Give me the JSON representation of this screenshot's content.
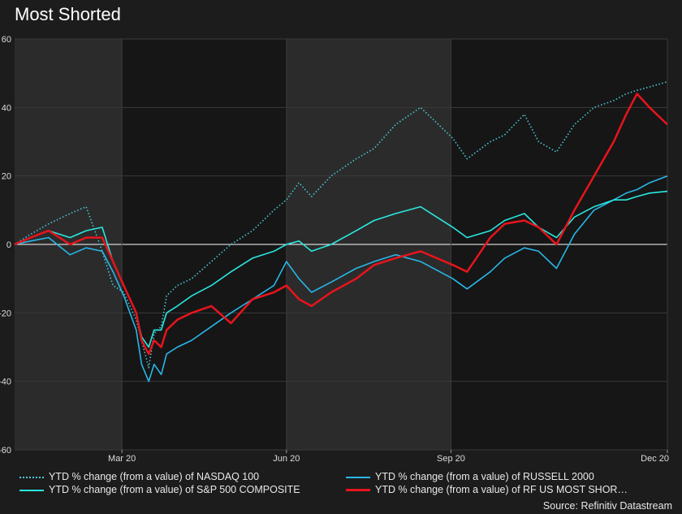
{
  "title": "Most Shorted",
  "source": "Source: Refinitiv Datastream",
  "colors": {
    "background": "#1c1c1c",
    "band": "#2b2b2b",
    "zero_line": "#ffffff"
  },
  "chart_data": {
    "type": "line",
    "title": "Most Shorted",
    "xlabel": "",
    "ylabel": "",
    "ylim": [
      -60,
      60
    ],
    "yticks": [
      -60,
      -40,
      -20,
      0,
      20,
      40,
      60
    ],
    "ytick_labels": [
      "-60",
      "-40",
      "-20",
      "0",
      "20",
      "40",
      "60"
    ],
    "xticks": [
      "Mar 20",
      "Jun 20",
      "Sep 20",
      "Dec 20"
    ],
    "grid": true,
    "legend_position": "bottom",
    "x": [
      "2020-01-01",
      "2020-01-10",
      "2020-01-20",
      "2020-02-01",
      "2020-02-10",
      "2020-02-19",
      "2020-02-25",
      "2020-03-02",
      "2020-03-09",
      "2020-03-12",
      "2020-03-16",
      "2020-03-19",
      "2020-03-23",
      "2020-03-26",
      "2020-04-01",
      "2020-04-09",
      "2020-04-20",
      "2020-05-01",
      "2020-05-13",
      "2020-05-25",
      "2020-06-01",
      "2020-06-08",
      "2020-06-15",
      "2020-06-26",
      "2020-07-10",
      "2020-07-20",
      "2020-08-01",
      "2020-08-15",
      "2020-09-02",
      "2020-09-10",
      "2020-09-23",
      "2020-10-01",
      "2020-10-12",
      "2020-10-20",
      "2020-10-30",
      "2020-11-09",
      "2020-11-20",
      "2020-12-01",
      "2020-12-08",
      "2020-12-14",
      "2020-12-21",
      "2020-12-31"
    ],
    "series": [
      {
        "name": "YTD % change (from a value) of NASDAQ 100",
        "color": "#4cc9d8",
        "dash": "dotted",
        "values": [
          0,
          3,
          6,
          9,
          11,
          -2,
          -12,
          -14,
          -22,
          -28,
          -36,
          -26,
          -24,
          -15,
          -12,
          -10,
          -5,
          0,
          4,
          10,
          13,
          18,
          14,
          20,
          25,
          28,
          35,
          40,
          31,
          25,
          30,
          32,
          38,
          30,
          27,
          35,
          40,
          42,
          44,
          45,
          46,
          47.5
        ]
      },
      {
        "name": "YTD % change (from a value) of RUSSELL 2000",
        "color": "#29b6e8",
        "dash": "solid",
        "values": [
          0,
          1,
          2,
          -3,
          -1,
          -2,
          -8,
          -15,
          -25,
          -35,
          -40,
          -35,
          -38,
          -32,
          -30,
          -28,
          -24,
          -20,
          -16,
          -12,
          -5,
          -10,
          -14,
          -11,
          -7,
          -5,
          -3,
          -5,
          -10,
          -13,
          -8,
          -4,
          -1,
          -2,
          -7,
          3,
          10,
          13,
          15,
          16,
          18,
          20
        ]
      },
      {
        "name": "YTD % change (from a value) of S&P 500 COMPOSITE",
        "color": "#2ae8e0",
        "dash": "solid",
        "values": [
          0,
          2,
          4,
          2,
          4,
          5,
          -5,
          -12,
          -20,
          -27,
          -30,
          -25,
          -25,
          -20,
          -18,
          -15,
          -12,
          -8,
          -4,
          -2,
          0,
          1,
          -2,
          0,
          4,
          7,
          9,
          11,
          5,
          2,
          4,
          7,
          9,
          5,
          2,
          8,
          11,
          13,
          13,
          14,
          15,
          15.5
        ]
      },
      {
        "name": "YTD % change (from a value) of RF US MOST SHOR…",
        "color": "#e8141c",
        "dash": "solid",
        "values": [
          0,
          2,
          4,
          0,
          2,
          2,
          -5,
          -12,
          -20,
          -28,
          -32,
          -28,
          -30,
          -25,
          -22,
          -20,
          -18,
          -23,
          -16,
          -14,
          -12,
          -16,
          -18,
          -14,
          -10,
          -6,
          -4,
          -2,
          -6,
          -8,
          2,
          6,
          7,
          5,
          0,
          10,
          20,
          30,
          38,
          44,
          40,
          35
        ]
      }
    ]
  }
}
